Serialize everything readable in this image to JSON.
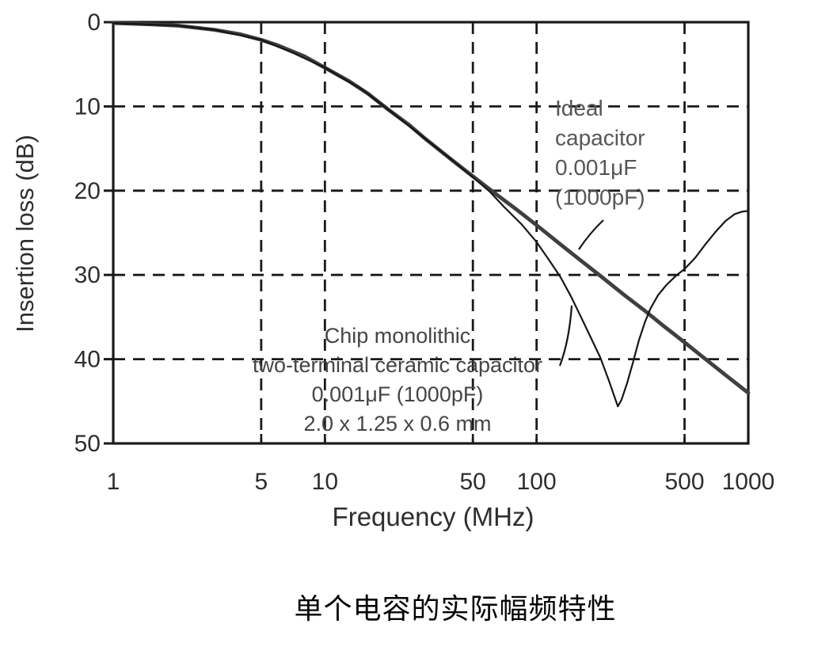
{
  "figure": {
    "caption": "单个电容的实际幅频特性"
  },
  "chart_data": {
    "type": "line",
    "title": "",
    "xlabel": "Frequency (MHz)",
    "ylabel": "Insertion loss (dB)",
    "x_scale": "log",
    "x_range": [
      1,
      1000
    ],
    "y_range": [
      0,
      50
    ],
    "y_axis_direction": "loss increases downward (0 dB at top, 50 dB at bottom)",
    "x_ticks": [
      1,
      5,
      10,
      50,
      100,
      500,
      1000
    ],
    "y_ticks": [
      0,
      10,
      20,
      30,
      40,
      50
    ],
    "x_gridlines": [
      5,
      10,
      50,
      100,
      500
    ],
    "y_gridlines": [
      10,
      20,
      30,
      40
    ],
    "grid_style": "dashed",
    "legend_position": "in-plot text annotations with leader lines",
    "series": [
      {
        "name": "Ideal capacitor 0.001μF (1000pF)",
        "style": "thick-gray",
        "points_mhz_db": [
          [
            1,
            0.1
          ],
          [
            1.5,
            0.25
          ],
          [
            2,
            0.4
          ],
          [
            3,
            0.9
          ],
          [
            4,
            1.45
          ],
          [
            5,
            2.1
          ],
          [
            6,
            2.75
          ],
          [
            8,
            4.05
          ],
          [
            10,
            5.4
          ],
          [
            13,
            7.0
          ],
          [
            16,
            8.5
          ],
          [
            20,
            10.4
          ],
          [
            25,
            12.2
          ],
          [
            30,
            13.9
          ],
          [
            40,
            16.4
          ],
          [
            50,
            18.3
          ],
          [
            65,
            20.5
          ],
          [
            80,
            22.2
          ],
          [
            100,
            24.1
          ],
          [
            130,
            26.4
          ],
          [
            160,
            28.2
          ],
          [
            200,
            30.1
          ],
          [
            260,
            32.4
          ],
          [
            330,
            34.4
          ],
          [
            400,
            36.1
          ],
          [
            500,
            38.0
          ],
          [
            650,
            40.3
          ],
          [
            800,
            42.1
          ],
          [
            1000,
            44.0
          ]
        ]
      },
      {
        "name": "Chip monolithic two-terminal ceramic capacitor 0.001μF (1000pF) 2.0 x 1.25 x 0.6 mm",
        "style": "thin-black",
        "self_resonance_mhz": 240,
        "max_loss_db": 45.6,
        "points_mhz_db": [
          [
            1,
            0.1
          ],
          [
            2,
            0.4
          ],
          [
            3,
            0.9
          ],
          [
            5,
            2.1
          ],
          [
            7,
            3.6
          ],
          [
            10,
            5.4
          ],
          [
            15,
            8.0
          ],
          [
            20,
            10.4
          ],
          [
            30,
            13.9
          ],
          [
            40,
            16.4
          ],
          [
            50,
            18.4
          ],
          [
            60,
            20.1
          ],
          [
            70,
            21.9
          ],
          [
            85,
            24.0
          ],
          [
            100,
            26.1
          ],
          [
            115,
            28.3
          ],
          [
            130,
            30.3
          ],
          [
            145,
            32.5
          ],
          [
            160,
            34.7
          ],
          [
            180,
            37.4
          ],
          [
            200,
            39.8
          ],
          [
            220,
            42.6
          ],
          [
            235,
            44.7
          ],
          [
            242,
            45.6
          ],
          [
            252,
            44.8
          ],
          [
            268,
            42.8
          ],
          [
            285,
            40.4
          ],
          [
            305,
            37.7
          ],
          [
            325,
            35.6
          ],
          [
            345,
            34.0
          ],
          [
            375,
            32.4
          ],
          [
            410,
            31.2
          ],
          [
            455,
            30.1
          ],
          [
            500,
            29.3
          ],
          [
            560,
            28.0
          ],
          [
            630,
            26.3
          ],
          [
            700,
            24.9
          ],
          [
            780,
            23.6
          ],
          [
            860,
            22.8
          ],
          [
            930,
            22.5
          ],
          [
            1000,
            22.4
          ]
        ]
      }
    ],
    "annotations": [
      {
        "id": "ideal_label",
        "lines": [
          "Ideal",
          "capacitor",
          "0.001μF",
          "(1000pF)"
        ],
        "points_to": "thick ideal-capacitor line"
      },
      {
        "id": "chip_label",
        "lines": [
          "Chip monolithic",
          "two-terminal ceramic capacitor",
          "0.001μF (1000pF)",
          "2.0 x 1.25 x 0.6 mm"
        ],
        "points_to": "thin chip-capacitor resonance curve"
      }
    ]
  },
  "colors": {
    "background": "#ffffff",
    "thick_line": "#3f3f3f",
    "thin_line": "#161616",
    "grid": "#1a1a1a",
    "tick_text": "#2e2e2e",
    "ideal_label_text": "#565656",
    "chip_label_text": "#454545"
  }
}
